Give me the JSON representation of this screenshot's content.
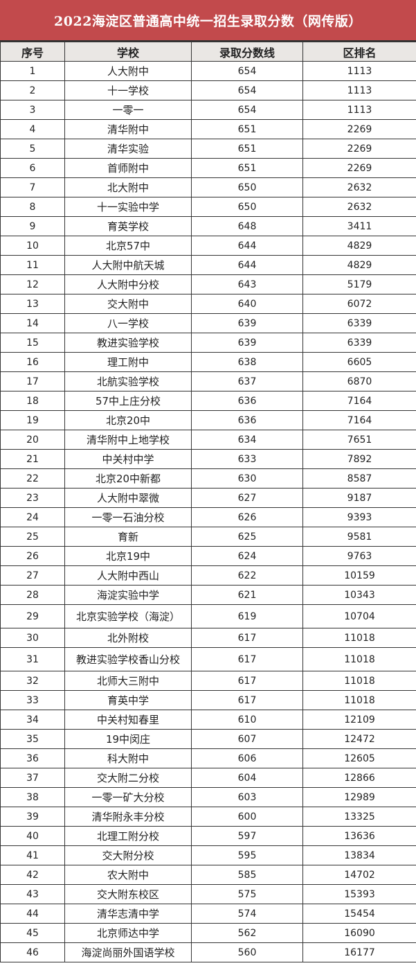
{
  "title": "2022海淀区普通高中统一招生录取分数（网传版）",
  "columns": [
    "序号",
    "学校",
    "录取分数线",
    "区排名"
  ],
  "rows": [
    [
      "1",
      "人大附中",
      "654",
      "1113"
    ],
    [
      "2",
      "十一学校",
      "654",
      "1113"
    ],
    [
      "3",
      "一零一",
      "654",
      "1113"
    ],
    [
      "4",
      "清华附中",
      "651",
      "2269"
    ],
    [
      "5",
      "清华实验",
      "651",
      "2269"
    ],
    [
      "6",
      "首师附中",
      "651",
      "2269"
    ],
    [
      "7",
      "北大附中",
      "650",
      "2632"
    ],
    [
      "8",
      "十一实验中学",
      "650",
      "2632"
    ],
    [
      "9",
      "育英学校",
      "648",
      "3411"
    ],
    [
      "10",
      "北京57中",
      "644",
      "4829"
    ],
    [
      "11",
      "人大附中航天城",
      "644",
      "4829"
    ],
    [
      "12",
      "人大附中分校",
      "643",
      "5179"
    ],
    [
      "13",
      "交大附中",
      "640",
      "6072"
    ],
    [
      "14",
      "八一学校",
      "639",
      "6339"
    ],
    [
      "15",
      "教进实验学校",
      "639",
      "6339"
    ],
    [
      "16",
      "理工附中",
      "638",
      "6605"
    ],
    [
      "17",
      "北航实验学校",
      "637",
      "6870"
    ],
    [
      "18",
      "57中上庄分校",
      "636",
      "7164"
    ],
    [
      "19",
      "北京20中",
      "636",
      "7164"
    ],
    [
      "20",
      "清华附中上地学校",
      "634",
      "7651"
    ],
    [
      "21",
      "中关村中学",
      "633",
      "7892"
    ],
    [
      "22",
      "北京20中新都",
      "630",
      "8587"
    ],
    [
      "23",
      "人大附中翠微",
      "627",
      "9187"
    ],
    [
      "24",
      "一零一石油分校",
      "626",
      "9393"
    ],
    [
      "25",
      "育新",
      "625",
      "9581"
    ],
    [
      "26",
      "北京19中",
      "624",
      "9763"
    ],
    [
      "27",
      "人大附中西山",
      "622",
      "10159"
    ],
    [
      "28",
      "海淀实验中学",
      "621",
      "10343"
    ],
    [
      "29",
      "北京实验学校（海淀）",
      "619",
      "10704"
    ],
    [
      "30",
      "北外附校",
      "617",
      "11018"
    ],
    [
      "31",
      "教进实验学校香山分校",
      "617",
      "11018"
    ],
    [
      "32",
      "北师大三附中",
      "617",
      "11018"
    ],
    [
      "33",
      "育英中学",
      "617",
      "11018"
    ],
    [
      "34",
      "中关村知春里",
      "610",
      "12109"
    ],
    [
      "35",
      "19中闵庄",
      "607",
      "12472"
    ],
    [
      "36",
      "科大附中",
      "606",
      "12605"
    ],
    [
      "37",
      "交大附二分校",
      "604",
      "12866"
    ],
    [
      "38",
      "一零一矿大分校",
      "603",
      "12989"
    ],
    [
      "39",
      "清华附永丰分校",
      "600",
      "13325"
    ],
    [
      "40",
      "北理工附分校",
      "597",
      "13636"
    ],
    [
      "41",
      "交大附分校",
      "595",
      "13834"
    ],
    [
      "42",
      "农大附中",
      "585",
      "14702"
    ],
    [
      "43",
      "交大附东校区",
      "575",
      "15393"
    ],
    [
      "44",
      "清华志清中学",
      "574",
      "15454"
    ],
    [
      "45",
      "北京师达中学",
      "562",
      "16090"
    ],
    [
      "46",
      "海淀尚丽外国语学校",
      "560",
      "16177"
    ]
  ],
  "colors": {
    "title_bg": "#c24a4c",
    "header_bg": "#eae7e4"
  }
}
